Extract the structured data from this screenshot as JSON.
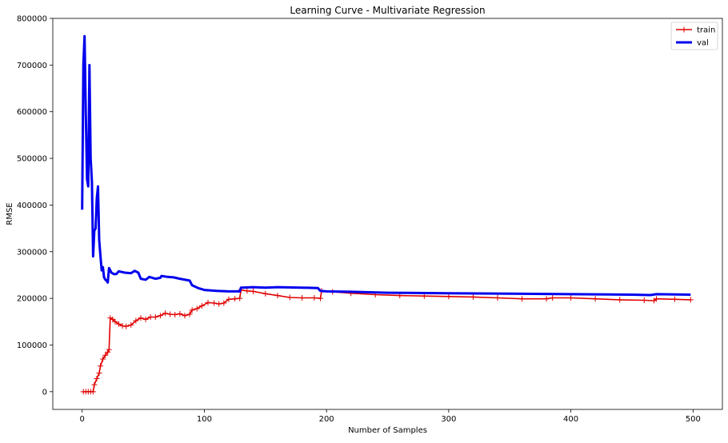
{
  "chart_data": {
    "type": "line",
    "title": "Learning Curve - Multivariate Regression",
    "xlabel": "Number of Samples",
    "ylabel": "RMSE",
    "xlim": [
      -24,
      524
    ],
    "ylim": [
      -38000,
      800000
    ],
    "xticks": [
      0,
      100,
      200,
      300,
      400,
      500
    ],
    "xtick_labels": [
      "0",
      "100",
      "200",
      "300",
      "400",
      "500"
    ],
    "yticks": [
      0,
      100000,
      200000,
      300000,
      400000,
      500000,
      600000,
      700000,
      800000
    ],
    "ytick_labels": [
      "0",
      "100000",
      "200000",
      "300000",
      "400000",
      "500000",
      "600000",
      "700000",
      "800000"
    ],
    "grid": false,
    "legend_position": "top-right",
    "series": [
      {
        "name": "train",
        "color": "#e00000",
        "marker": "+",
        "points": [
          [
            1,
            0
          ],
          [
            3,
            0
          ],
          [
            5,
            0
          ],
          [
            7,
            0
          ],
          [
            9,
            0
          ],
          [
            10,
            15000
          ],
          [
            12,
            28000
          ],
          [
            14,
            40000
          ],
          [
            15,
            55000
          ],
          [
            17,
            70000
          ],
          [
            19,
            78000
          ],
          [
            21,
            85000
          ],
          [
            22,
            90000
          ],
          [
            23,
            158000
          ],
          [
            25,
            155000
          ],
          [
            27,
            150000
          ],
          [
            30,
            145000
          ],
          [
            33,
            141000
          ],
          [
            36,
            140000
          ],
          [
            40,
            143000
          ],
          [
            44,
            152000
          ],
          [
            48,
            158000
          ],
          [
            52,
            155000
          ],
          [
            56,
            160000
          ],
          [
            60,
            160000
          ],
          [
            64,
            163000
          ],
          [
            68,
            168000
          ],
          [
            72,
            166000
          ],
          [
            76,
            165000
          ],
          [
            80,
            167000
          ],
          [
            84,
            163000
          ],
          [
            88,
            166000
          ],
          [
            90,
            175000
          ],
          [
            94,
            178000
          ],
          [
            98,
            184000
          ],
          [
            103,
            191000
          ],
          [
            108,
            190000
          ],
          [
            112,
            188000
          ],
          [
            116,
            190000
          ],
          [
            120,
            198000
          ],
          [
            125,
            199000
          ],
          [
            129,
            200000
          ],
          [
            130,
            218000
          ],
          [
            135,
            216000
          ],
          [
            140,
            215000
          ],
          [
            150,
            210000
          ],
          [
            160,
            206000
          ],
          [
            170,
            202000
          ],
          [
            180,
            201000
          ],
          [
            190,
            201000
          ],
          [
            195,
            200000
          ],
          [
            196,
            216000
          ],
          [
            205,
            214000
          ],
          [
            220,
            211000
          ],
          [
            240,
            208000
          ],
          [
            260,
            206000
          ],
          [
            280,
            205000
          ],
          [
            300,
            204000
          ],
          [
            320,
            203000
          ],
          [
            340,
            201000
          ],
          [
            360,
            199000
          ],
          [
            380,
            199000
          ],
          [
            385,
            201000
          ],
          [
            400,
            201000
          ],
          [
            420,
            199000
          ],
          [
            440,
            197000
          ],
          [
            460,
            196000
          ],
          [
            468,
            195000
          ],
          [
            470,
            199000
          ],
          [
            485,
            198000
          ],
          [
            498,
            197000
          ]
        ]
      },
      {
        "name": "val",
        "color": "#0000ee",
        "marker": "",
        "points": [
          [
            0,
            390000
          ],
          [
            1,
            700000
          ],
          [
            2,
            762000
          ],
          [
            3,
            600000
          ],
          [
            4,
            455000
          ],
          [
            5,
            440000
          ],
          [
            6,
            700000
          ],
          [
            7,
            500000
          ],
          [
            8,
            450000
          ],
          [
            9,
            290000
          ],
          [
            10,
            345000
          ],
          [
            11,
            350000
          ],
          [
            12,
            415000
          ],
          [
            13,
            440000
          ],
          [
            14,
            325000
          ],
          [
            15,
            290000
          ],
          [
            16,
            260000
          ],
          [
            17,
            267000
          ],
          [
            18,
            245000
          ],
          [
            19,
            240000
          ],
          [
            20,
            238000
          ],
          [
            21,
            234000
          ],
          [
            22,
            265000
          ],
          [
            23,
            260000
          ],
          [
            24,
            255000
          ],
          [
            26,
            252000
          ],
          [
            28,
            252000
          ],
          [
            30,
            258000
          ],
          [
            35,
            255000
          ],
          [
            40,
            254000
          ],
          [
            43,
            259000
          ],
          [
            46,
            255000
          ],
          [
            48,
            242000
          ],
          [
            52,
            240000
          ],
          [
            55,
            246000
          ],
          [
            60,
            242000
          ],
          [
            64,
            244000
          ],
          [
            65,
            248000
          ],
          [
            70,
            246000
          ],
          [
            75,
            245000
          ],
          [
            80,
            242000
          ],
          [
            88,
            238000
          ],
          [
            90,
            228000
          ],
          [
            95,
            222000
          ],
          [
            100,
            218000
          ],
          [
            110,
            216000
          ],
          [
            120,
            215000
          ],
          [
            129,
            215000
          ],
          [
            130,
            223000
          ],
          [
            140,
            224000
          ],
          [
            150,
            223000
          ],
          [
            160,
            224000
          ],
          [
            180,
            223000
          ],
          [
            193,
            222000
          ],
          [
            195,
            216000
          ],
          [
            200,
            215000
          ],
          [
            220,
            214000
          ],
          [
            250,
            212000
          ],
          [
            300,
            211000
          ],
          [
            350,
            210000
          ],
          [
            400,
            209000
          ],
          [
            450,
            208000
          ],
          [
            465,
            207000
          ],
          [
            470,
            209000
          ],
          [
            498,
            208000
          ]
        ]
      }
    ]
  }
}
